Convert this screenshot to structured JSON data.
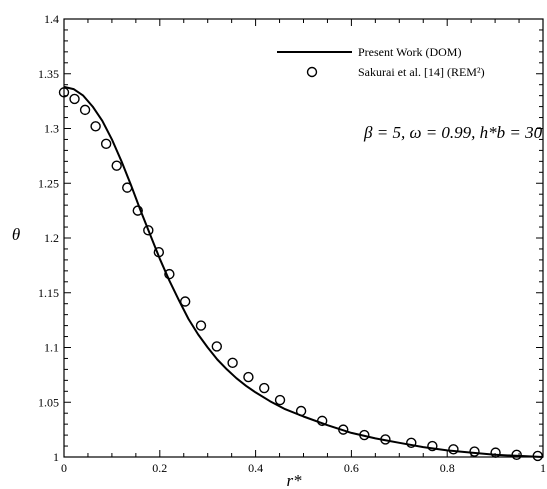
{
  "chart_data": {
    "type": "line",
    "title": "",
    "xlabel": "r*",
    "ylabel": "θ",
    "xlim": [
      0,
      1
    ],
    "ylim": [
      1,
      1.4
    ],
    "x_ticks": [
      "0",
      "0.2",
      "0.4",
      "0.6",
      "0.8",
      "1"
    ],
    "y_ticks": [
      "1",
      "1.05",
      "1.1",
      "1.15",
      "1.2",
      "1.25",
      "1.3",
      "1.35",
      "1.4"
    ],
    "grid": false,
    "legend_position": "top-right",
    "annotation": "β = 5, ω = 0.99, h*b = 30",
    "series": [
      {
        "name": "Present Work (DOM)",
        "style": "solid-line",
        "color": "#000000",
        "x": [
          0,
          0.02,
          0.04,
          0.06,
          0.08,
          0.1,
          0.12,
          0.14,
          0.16,
          0.18,
          0.2,
          0.22,
          0.24,
          0.26,
          0.28,
          0.3,
          0.32,
          0.34,
          0.36,
          0.38,
          0.4,
          0.43,
          0.46,
          0.5,
          0.55,
          0.6,
          0.65,
          0.7,
          0.75,
          0.8,
          0.85,
          0.9,
          0.95,
          1.0
        ],
        "y": [
          1.338,
          1.336,
          1.33,
          1.32,
          1.307,
          1.29,
          1.27,
          1.248,
          1.225,
          1.203,
          1.181,
          1.161,
          1.143,
          1.126,
          1.112,
          1.1,
          1.089,
          1.08,
          1.072,
          1.065,
          1.059,
          1.051,
          1.044,
          1.037,
          1.029,
          1.022,
          1.017,
          1.013,
          1.009,
          1.006,
          1.004,
          1.002,
          1.001,
          1.0
        ]
      },
      {
        "name": "Sakurai et al. [14] (REM²)",
        "style": "open-circle",
        "color": "#000000",
        "x": [
          0.0,
          0.022,
          0.044,
          0.066,
          0.088,
          0.11,
          0.132,
          0.154,
          0.176,
          0.198,
          0.22,
          0.253,
          0.286,
          0.319,
          0.352,
          0.385,
          0.418,
          0.451,
          0.495,
          0.539,
          0.583,
          0.627,
          0.671,
          0.725,
          0.769,
          0.813,
          0.857,
          0.901,
          0.945,
          0.989
        ],
        "y": [
          1.333,
          1.327,
          1.317,
          1.302,
          1.286,
          1.266,
          1.246,
          1.225,
          1.207,
          1.187,
          1.167,
          1.142,
          1.12,
          1.101,
          1.086,
          1.073,
          1.063,
          1.052,
          1.042,
          1.033,
          1.025,
          1.02,
          1.016,
          1.013,
          1.01,
          1.007,
          1.005,
          1.004,
          1.002,
          1.001
        ]
      }
    ]
  }
}
